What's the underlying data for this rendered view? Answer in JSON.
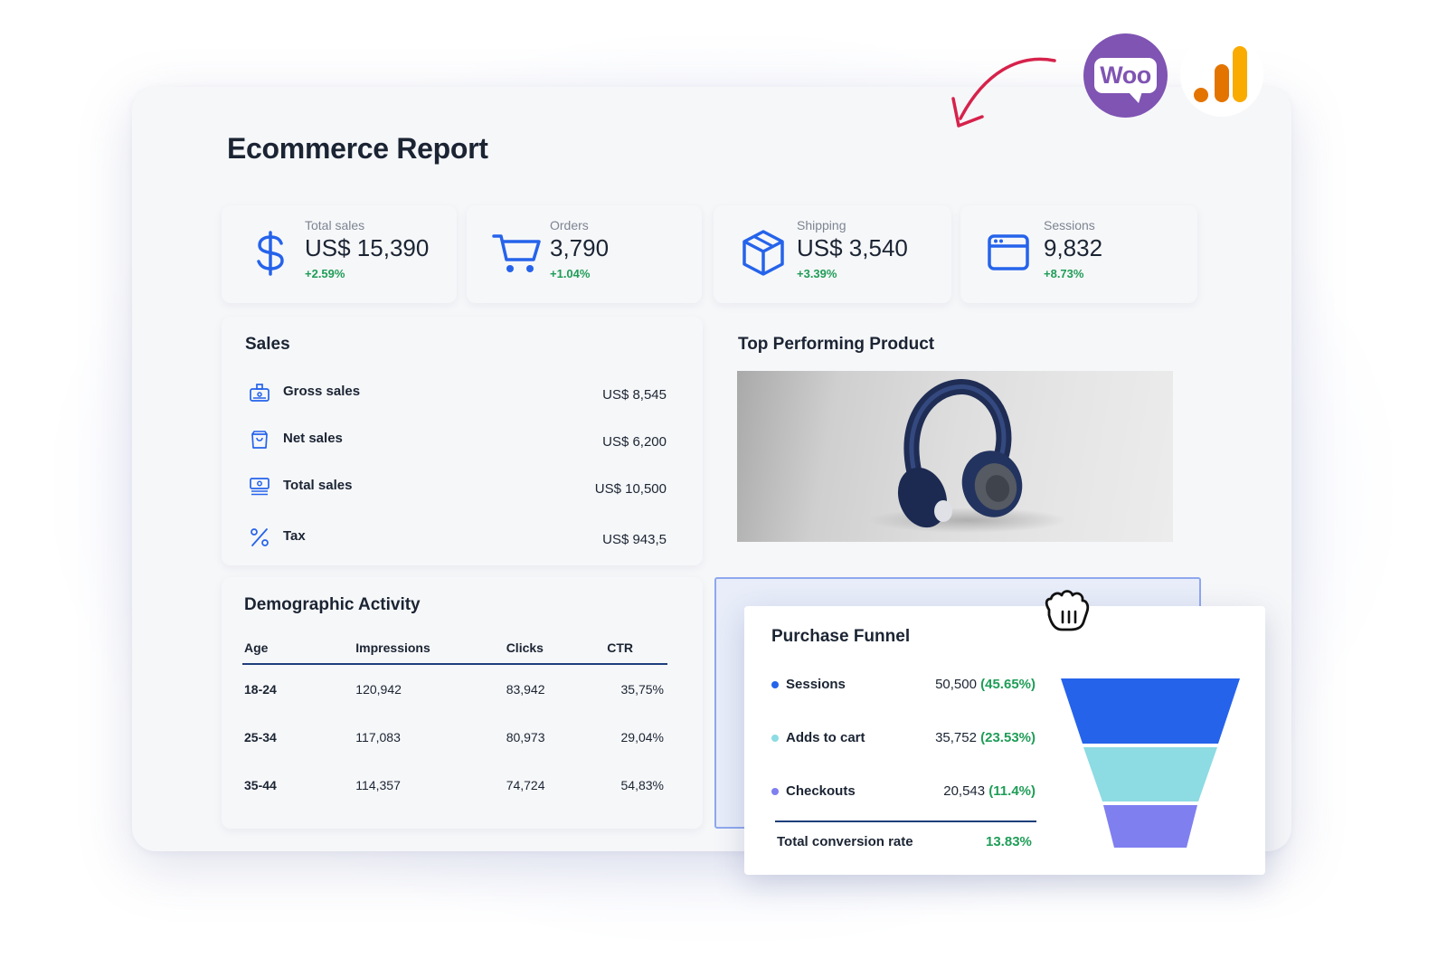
{
  "report": {
    "title": "Ecommerce Report"
  },
  "kpis": [
    {
      "icon": "dollar-icon",
      "label": "Total sales",
      "value": "US$ 15,390",
      "delta": "+2.59%"
    },
    {
      "icon": "cart-icon",
      "label": "Orders",
      "value": "3,790",
      "delta": "+1.04%"
    },
    {
      "icon": "box-icon",
      "label": "Shipping",
      "value": "US$ 3,540",
      "delta": "+3.39%"
    },
    {
      "icon": "browser-window-icon",
      "label": "Sessions",
      "value": "9,832",
      "delta": "+8.73%"
    }
  ],
  "sales": {
    "title": "Sales",
    "rows": [
      {
        "icon": "register-icon",
        "label": "Gross sales",
        "value": "US$ 8,545"
      },
      {
        "icon": "bag-icon",
        "label": "Net sales",
        "value": "US$ 6,200"
      },
      {
        "icon": "cash-stack-icon",
        "label": "Total sales",
        "value": "US$ 10,500"
      },
      {
        "icon": "percent-icon",
        "label": "Tax",
        "value": "US$ 943,5"
      }
    ]
  },
  "top_product": {
    "title": "Top Performing Product",
    "image": "headphones-product-photo"
  },
  "demographic": {
    "title": "Demographic Activity",
    "columns": [
      "Age",
      "Impressions",
      "Clicks",
      "CTR"
    ],
    "rows": [
      [
        "18-24",
        "120,942",
        "83,942",
        "35,75%"
      ],
      [
        "25-34",
        "117,083",
        "80,973",
        "29,04%"
      ],
      [
        "35-44",
        "114,357",
        "74,724",
        "54,83%"
      ]
    ]
  },
  "funnel": {
    "title": "Purchase Funnel",
    "stages": [
      {
        "label": "Sessions",
        "value": "50,500",
        "pct": "(45.65%)",
        "color": "#2563eb"
      },
      {
        "label": "Adds to cart",
        "value": "35,752",
        "pct": "(23.53%)",
        "color": "#8ddbe3"
      },
      {
        "label": "Checkouts",
        "value": "20,543",
        "pct": "(11.4%)",
        "color": "#7f7ff0"
      }
    ],
    "total_label": "Total conversion rate",
    "total_value": "13.83%"
  },
  "logos": {
    "woocommerce_text": "Woo",
    "analytics": "google-analytics-icon"
  },
  "colors": {
    "accent_blue": "#2563eb",
    "positive_green": "#1f9d57",
    "woo_purple": "#7f54b3",
    "ga_orange": "#f9ab00",
    "arrow_red": "#d6224b"
  }
}
